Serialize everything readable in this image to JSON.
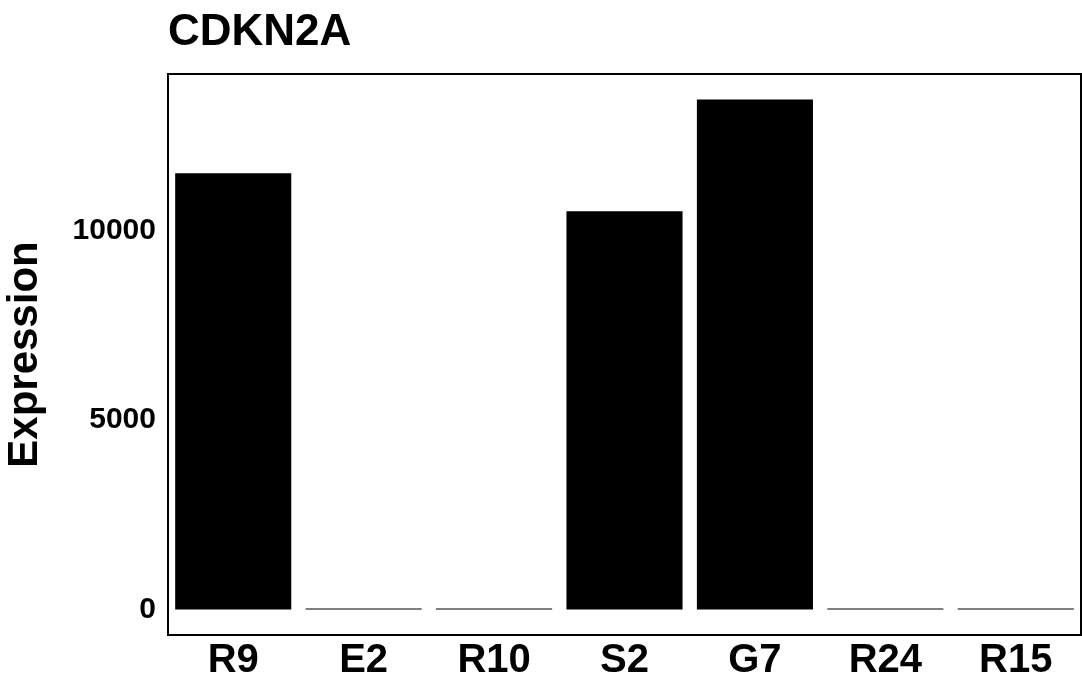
{
  "chart_data": {
    "type": "bar",
    "title": "CDKN2A",
    "ylabel": "Expression",
    "categories": [
      "R9",
      "E2",
      "R10",
      "S2",
      "G7",
      "R24",
      "R15"
    ],
    "values": [
      11500,
      10,
      30,
      10500,
      13450,
      10,
      10
    ],
    "color": "#000000",
    "ylim": [
      -672,
      14120
    ],
    "yticks": [
      0,
      5000,
      10000
    ],
    "grid": false,
    "legend": false
  }
}
